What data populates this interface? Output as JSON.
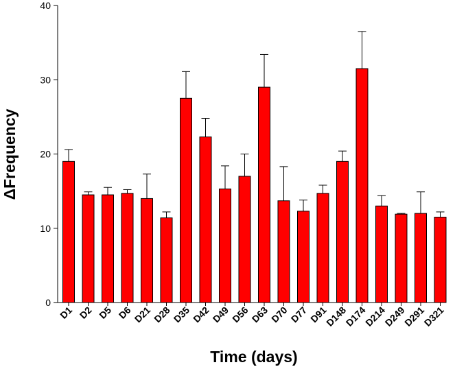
{
  "chart_data": {
    "type": "bar",
    "title": "",
    "xlabel": "Time (days)",
    "ylabel": "ΔFrequency",
    "ylim": [
      0,
      40
    ],
    "yticks": [
      "0",
      "10",
      "20",
      "30",
      "40"
    ],
    "grid": false,
    "legend": "none",
    "bar_color": "#ff0000",
    "categories": [
      "D1",
      "D2",
      "D5",
      "D6",
      "D21",
      "D28",
      "D35",
      "D42",
      "D49",
      "D56",
      "D63",
      "D70",
      "D77",
      "D91",
      "D148",
      "D174",
      "D214",
      "D249",
      "D291",
      "D321"
    ],
    "series": [
      {
        "name": "ΔFrequency",
        "values": [
          19.0,
          14.5,
          14.5,
          14.7,
          14.0,
          11.4,
          27.5,
          22.3,
          15.3,
          17.0,
          29.0,
          13.7,
          12.3,
          14.7,
          19.0,
          31.5,
          13.0,
          11.9,
          12.0,
          11.5
        ],
        "errors": [
          1.6,
          0.4,
          1.0,
          0.5,
          3.3,
          0.8,
          3.6,
          2.5,
          3.1,
          3.0,
          4.4,
          4.6,
          1.5,
          1.1,
          1.4,
          5.0,
          1.4,
          0.1,
          2.9,
          0.7
        ]
      }
    ]
  }
}
